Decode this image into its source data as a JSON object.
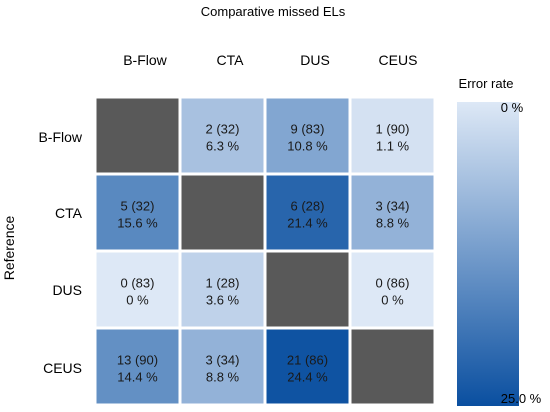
{
  "chart_data": {
    "type": "heatmap",
    "title": "Comparative missed ELs",
    "ylabel": "Reference",
    "columns": [
      "B-Flow",
      "CTA",
      "DUS",
      "CEUS"
    ],
    "rows": [
      "B-Flow",
      "CTA",
      "DUS",
      "CEUS"
    ],
    "cells": [
      [
        null,
        {
          "count": "2 (32)",
          "percent": "6.3 %",
          "rate": 6.3
        },
        {
          "count": "9 (83)",
          "percent": "10.8 %",
          "rate": 10.8
        },
        {
          "count": "1 (90)",
          "percent": "1.1 %",
          "rate": 1.1
        }
      ],
      [
        {
          "count": "5 (32)",
          "percent": "15.6 %",
          "rate": 15.6
        },
        null,
        {
          "count": "6 (28)",
          "percent": "21.4 %",
          "rate": 21.4
        },
        {
          "count": "3 (34)",
          "percent": "8.8 %",
          "rate": 8.8
        }
      ],
      [
        {
          "count": "0 (83)",
          "percent": "0 %",
          "rate": 0
        },
        {
          "count": "1 (28)",
          "percent": "3.6 %",
          "rate": 3.6
        },
        null,
        {
          "count": "0 (86)",
          "percent": "0 %",
          "rate": 0
        }
      ],
      [
        {
          "count": "13 (90)",
          "percent": "14.4 %",
          "rate": 14.4
        },
        {
          "count": "3 (34)",
          "percent": "8.8 %",
          "rate": 8.8
        },
        {
          "count": "21 (86)",
          "percent": "24.4 %",
          "rate": 24.4
        },
        null
      ]
    ],
    "legend": {
      "title": "Error rate",
      "min_label": "0 %",
      "max_label": "25.0 %",
      "min": 0,
      "max": 25,
      "color_low": "#dde8f6",
      "color_high": "#0a4fa0"
    },
    "diagonal_color": "#595959"
  }
}
